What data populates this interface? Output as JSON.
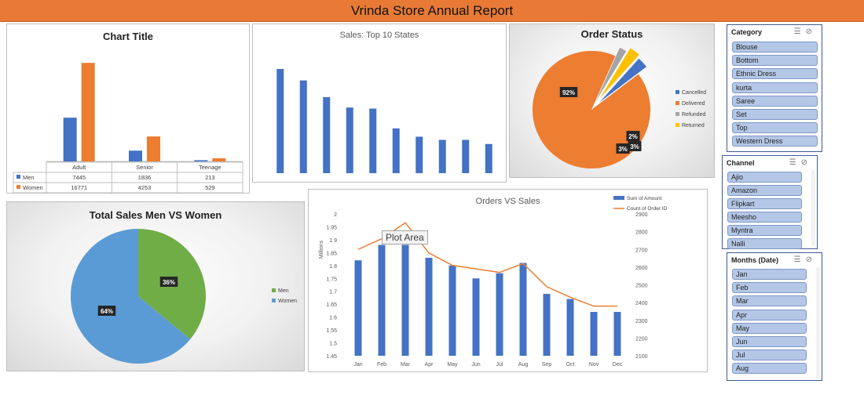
{
  "header": {
    "title": "Vrinda Store Annual Report"
  },
  "chart_data": [
    {
      "id": "men-women-age",
      "type": "bar",
      "title": "Chart Title",
      "categories": [
        "Adult",
        "Senior",
        "Teenage"
      ],
      "series": [
        {
          "name": "Men",
          "values": [
            7445,
            1836,
            213
          ],
          "color": "#4472c4"
        },
        {
          "name": "Women",
          "values": [
            16771,
            4253,
            529
          ],
          "color": "#ed7d31"
        }
      ],
      "ylim": [
        0,
        18000
      ],
      "data_table": true
    },
    {
      "id": "top-states",
      "type": "bar",
      "title": "Sales: Top 10 States",
      "values": [
        100,
        89,
        73,
        63,
        62,
        43,
        35,
        32,
        32,
        28
      ],
      "ylim": [
        0,
        110
      ],
      "color": "#4472c4"
    },
    {
      "id": "order-status",
      "type": "pie",
      "title": "Order Status",
      "slices": [
        {
          "name": "Cancelled",
          "value": 3,
          "label": "3%",
          "color": "#4472c4"
        },
        {
          "name": "Delivered",
          "value": 92,
          "label": "92%",
          "color": "#ed7d31"
        },
        {
          "name": "Refunded",
          "value": 2,
          "label": "2%",
          "color": "#a5a5a5"
        },
        {
          "name": "Returned",
          "value": 3,
          "label": "3%",
          "color": "#ffc000"
        }
      ],
      "legend": "right"
    },
    {
      "id": "sales-men-women",
      "type": "pie",
      "title": "Total Sales Men VS Women",
      "slices": [
        {
          "name": "Men",
          "value": 36,
          "label": "36%",
          "color": "#70ad47"
        },
        {
          "name": "Women",
          "value": 64,
          "label": "64%",
          "color": "#5b9bd5"
        }
      ],
      "legend": "right"
    },
    {
      "id": "orders-vs-sales",
      "type": "bar",
      "title": "Orders VS Sales",
      "categories": [
        "Jan",
        "Feb",
        "Mar",
        "Apr",
        "May",
        "Jun",
        "Jul",
        "Aug",
        "Sep",
        "Oct",
        "Nov",
        "Dec"
      ],
      "series": [
        {
          "name": "Sum of Amount",
          "type": "bar",
          "axis": "left",
          "values": [
            1.82,
            1.88,
            1.88,
            1.83,
            1.8,
            1.75,
            1.77,
            1.81,
            1.69,
            1.67,
            1.62,
            1.62
          ],
          "color": "#4472c4"
        },
        {
          "name": "Count of Order ID",
          "type": "line",
          "axis": "right",
          "values": [
            2700,
            2760,
            2850,
            2680,
            2610,
            2590,
            2570,
            2620,
            2490,
            2430,
            2380,
            2380
          ],
          "color": "#ed7d31"
        }
      ],
      "ylabel": "Millions",
      "ylim": [
        1.45,
        2
      ],
      "yticks": [
        "2",
        "1.95",
        "1.9",
        "1.85",
        "1.8",
        "1.75",
        "1.7",
        "1.65",
        "1.6",
        "1.55",
        "1.5",
        "1.45"
      ],
      "y2lim": [
        2100,
        2900
      ],
      "y2ticks": [
        "2900",
        "2800",
        "2700",
        "2600",
        "2500",
        "2400",
        "2300",
        "2200",
        "2100"
      ],
      "legend": "top-right",
      "tooltip": "Plot Area"
    }
  ],
  "slicers": {
    "category": {
      "title": "Category",
      "items": [
        "Blouse",
        "Bottom",
        "Ethnic Dress",
        "kurta",
        "Saree",
        "Set",
        "Top",
        "Western Dress"
      ]
    },
    "channel": {
      "title": "Channel",
      "items": [
        "Ajio",
        "Amazon",
        "Flipkart",
        "Meesho",
        "Myntra",
        "Nalli"
      ]
    },
    "months": {
      "title": "Months (Date)",
      "items": [
        "Jan",
        "Feb",
        "Mar",
        "Apr",
        "May",
        "Jun",
        "Jul",
        "Aug"
      ]
    }
  },
  "icons": {
    "multiselect": "multi-select-icon",
    "clear_filter": "clear-filter-icon"
  }
}
